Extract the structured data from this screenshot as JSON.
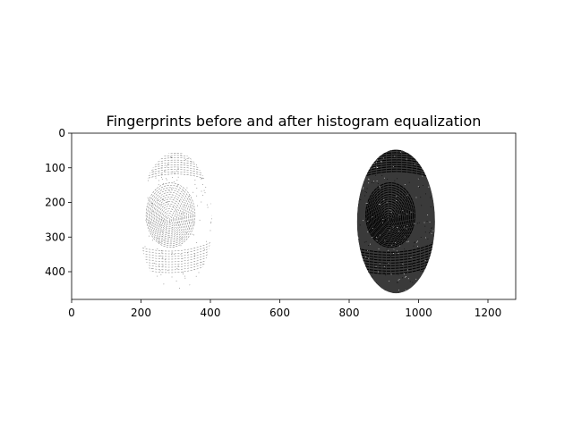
{
  "chart_data": {
    "type": "image",
    "title": "Fingerprints before and after histogram equalization",
    "xlabel": "",
    "ylabel": "",
    "xlim": [
      0,
      1280
    ],
    "ylim": [
      480,
      0
    ],
    "xticks": [
      0,
      200,
      400,
      600,
      800,
      1000,
      1200
    ],
    "yticks": [
      0,
      100,
      200,
      300,
      400
    ],
    "panels": [
      {
        "kind": "fingerprint-original",
        "center_x": 300,
        "center_y": 255,
        "width": 210,
        "height": 400,
        "contrast": "low"
      },
      {
        "kind": "fingerprint-equalized",
        "center_x": 935,
        "center_y": 255,
        "width": 225,
        "height": 415,
        "contrast": "high"
      }
    ],
    "colors": {
      "background": "#ffffff",
      "ink": "#000000"
    }
  }
}
